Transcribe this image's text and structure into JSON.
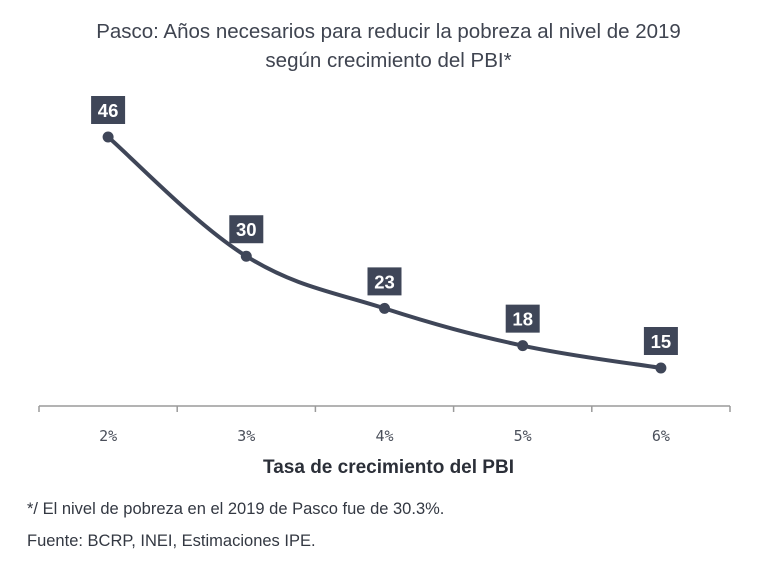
{
  "chart_data": {
    "type": "line",
    "title_lines": [
      "Pasco: Años necesarios para reducir la pobreza al nivel de 2019",
      "según crecimiento del PBI*"
    ],
    "categories": [
      "2%",
      "3%",
      "4%",
      "5%",
      "6%"
    ],
    "values": [
      46,
      30,
      23,
      18,
      15
    ],
    "xlabel": "Tasa de crecimiento del PBI",
    "ylabel": "",
    "ylim": [
      0,
      50
    ],
    "grid": false,
    "legend": "none",
    "notes": [
      "*/ El nivel de pobreza en el 2019 de Pasco fue de 30.3%.",
      "Fuente: BCRP, INEI, Estimaciones IPE."
    ]
  },
  "colors": {
    "series": "#3f4658",
    "label_bg": "#3f4658",
    "axis": "#9a9a9a"
  }
}
